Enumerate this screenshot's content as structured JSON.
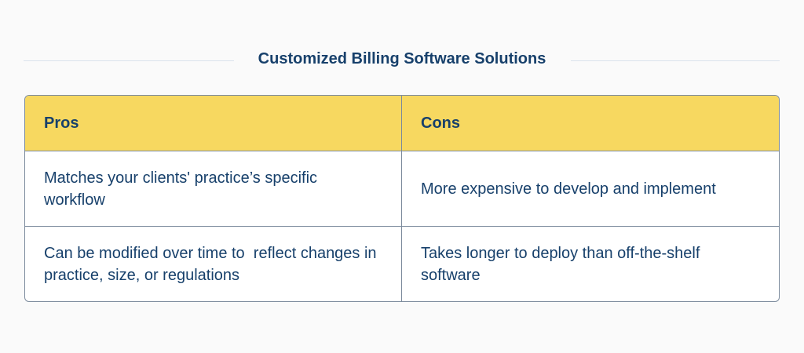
{
  "title": "Customized Billing Software Solutions",
  "table": {
    "headers": [
      "Pros",
      "Cons"
    ],
    "rows": [
      [
        "Matches your clients' practice’s specific workflow",
        "More expensive to develop and implement"
      ],
      [
        "Can be modified over time to  reflect changes in practice, size, or regulations",
        "Takes longer to deploy than off-the-shelf software"
      ]
    ]
  },
  "colors": {
    "header_bg": "#f7d860",
    "text": "#17406b",
    "border": "#7b8a9c"
  }
}
